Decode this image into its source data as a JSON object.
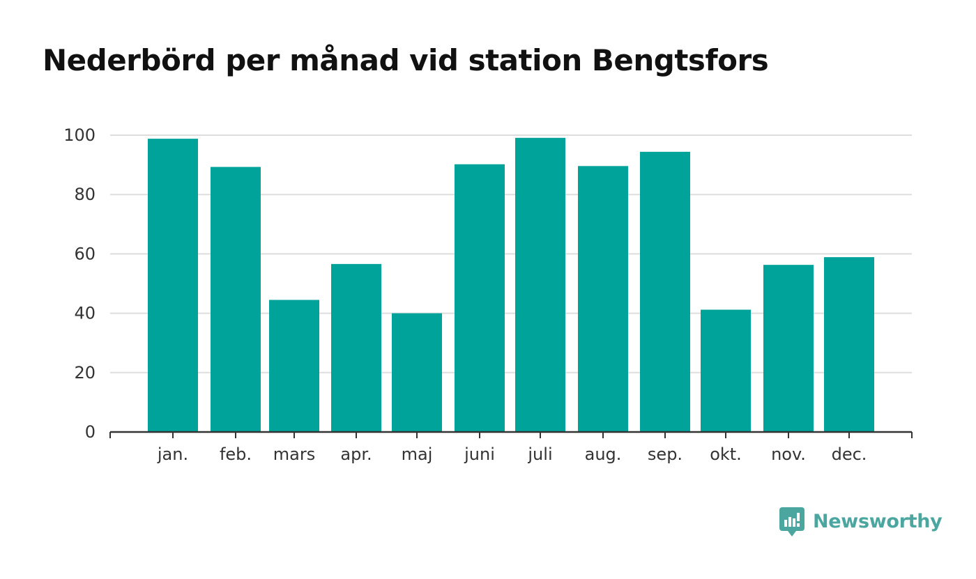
{
  "page": {
    "title": "Nederbörd per månad vid station Bengtsfors"
  },
  "brand": {
    "name": "Newsworthy",
    "icon": "newsworthy-logo-icon",
    "color": "#4aa69f"
  },
  "chart_data": {
    "type": "bar",
    "title": "Nederbörd per månad vid station Bengtsfors",
    "xlabel": "",
    "ylabel": "",
    "categories": [
      "jan.",
      "feb.",
      "mars",
      "apr.",
      "maj",
      "juni",
      "juli",
      "aug.",
      "sep.",
      "okt.",
      "nov.",
      "dec."
    ],
    "values": [
      98.8,
      89.3,
      44.5,
      56.6,
      40.0,
      90.2,
      99.1,
      89.6,
      94.4,
      41.2,
      56.3,
      58.9
    ],
    "ylim": [
      0,
      100
    ],
    "yticks": [
      "0",
      "20",
      "40",
      "60",
      "80",
      "100"
    ],
    "grid": true,
    "legend": "none",
    "bar_color": "#00a39a",
    "grid_color": "#dddddd",
    "axis_color": "#333333"
  }
}
